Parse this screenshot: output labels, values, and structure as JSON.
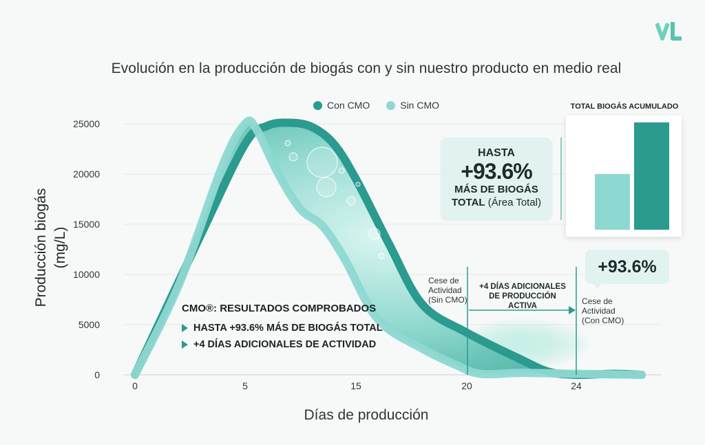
{
  "logo_text": "VL",
  "colors": {
    "con": "#2b9a8f",
    "sin": "#8ed8d2",
    "con_light": "#45b3a7"
  },
  "chart_data": {
    "type": "area",
    "title": "Evolución en la producción de biogás con y sin nuestro producto en medio real",
    "xlabel": "Días de producción",
    "ylabel": "Producción biogás (mg/L)",
    "xlim": [
      0,
      30
    ],
    "ylim": [
      0,
      25000
    ],
    "x_ticks": [
      "0",
      "5",
      "15",
      "20",
      "24"
    ],
    "y_ticks": [
      "0",
      "5000",
      "10000",
      "15000",
      "20000",
      "25000"
    ],
    "grid": true,
    "legend_placement": "top",
    "series": [
      {
        "name": "Con CMO",
        "x": [
          0,
          3,
          5,
          7,
          9,
          11,
          13,
          15,
          16.5,
          18,
          20,
          22,
          23,
          24,
          26,
          27.5
        ],
        "y": [
          0,
          14000,
          23000,
          24800,
          25100,
          24700,
          23000,
          19500,
          13000,
          7000,
          4200,
          1500,
          300,
          0,
          100,
          0
        ]
      },
      {
        "name": "Sin CMO",
        "x": [
          0,
          2,
          4,
          5,
          6,
          8,
          10,
          12,
          14,
          16,
          18,
          19.5,
          20.5,
          22,
          24,
          27.5
        ],
        "y": [
          0,
          9000,
          21000,
          25000,
          24500,
          20000,
          16500,
          14800,
          11500,
          5500,
          2600,
          1000,
          100,
          200,
          100,
          0
        ]
      }
    ],
    "annotations": {
      "hasta": "HASTA",
      "pct_big": "+93.6%",
      "mas": "MÁS DE BIOGÁS",
      "total_bold": "TOTAL",
      "total_rest": "(Área Total)",
      "badge": "+93.6%",
      "cese_sin": [
        "Cese de",
        "Actividad",
        "(Sin CMO)"
      ],
      "cese_con": [
        "Cese de",
        "Actividad",
        "(Con CMO)"
      ],
      "dias_extra": [
        "+4 DÍAS ADICIONALES",
        "DE PRODUCCIÓN ACTIVA"
      ]
    },
    "results": {
      "head": "CMO®: RESULTADOS COMPROBADOS",
      "items": [
        "HASTA +93.6% MÁS DE BIOGÁS TOTAL",
        "+4 DÍAS ADICIONALES DE ACTIVIDAD"
      ]
    },
    "inset": {
      "type": "bar",
      "title": "TOTAL BIOGÁS ACUMULADO",
      "series": [
        "Sin CMO",
        "Con CMO"
      ],
      "values": [
        1,
        1.936
      ]
    }
  }
}
